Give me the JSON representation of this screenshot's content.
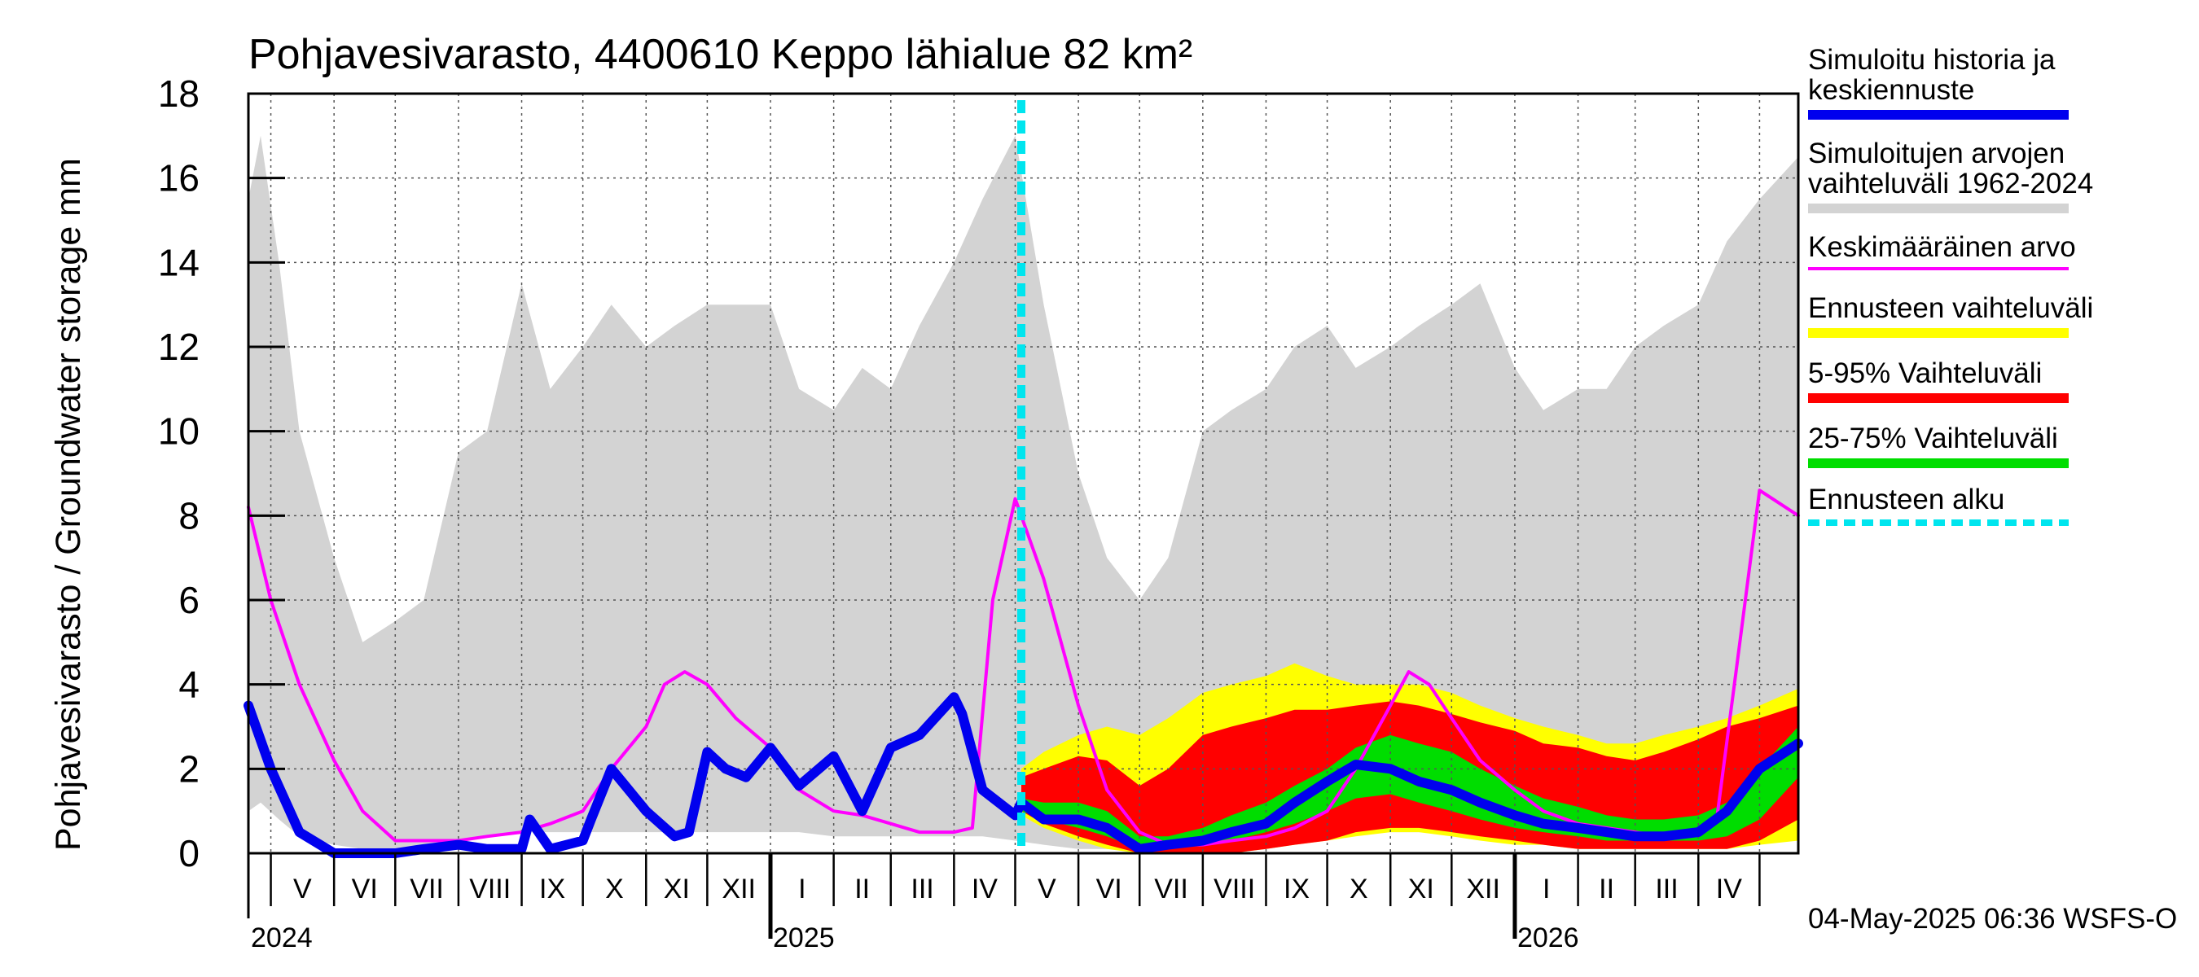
{
  "chart_data": {
    "type": "area",
    "title": "Pohjavesivarasto, 4400610 Keppo lähialue 82 km²",
    "ylabel": "Pohjavesivarasto / Groundwater storage   mm",
    "ylim": [
      0,
      18
    ],
    "yticks": [
      0,
      2,
      4,
      6,
      8,
      10,
      12,
      14,
      16,
      18
    ],
    "xlim": [
      "2024-04-20",
      "2026-05-20"
    ],
    "grid": true,
    "month_labels": [
      "V",
      "VI",
      "VII",
      "VIII",
      "IX",
      "X",
      "XI",
      "XII",
      "I",
      "II",
      "III",
      "IV",
      "V",
      "VI",
      "VII",
      "VIII",
      "IX",
      "X",
      "XI",
      "XII",
      "I",
      "II",
      "III",
      "IV"
    ],
    "month_starts": [
      "2024-05-01",
      "2024-06-01",
      "2024-07-01",
      "2024-08-01",
      "2024-09-01",
      "2024-10-01",
      "2024-11-01",
      "2024-12-01",
      "2025-01-01",
      "2025-02-01",
      "2025-03-01",
      "2025-04-01",
      "2025-05-01",
      "2025-06-01",
      "2025-07-01",
      "2025-08-01",
      "2025-09-01",
      "2025-10-01",
      "2025-11-01",
      "2025-12-01",
      "2026-01-01",
      "2026-02-01",
      "2026-03-01",
      "2026-04-01",
      "2026-05-01"
    ],
    "year_labels": [
      {
        "label": "2024",
        "date": "2024-04-20"
      },
      {
        "label": "2025",
        "date": "2025-01-01"
      },
      {
        "label": "2026",
        "date": "2026-01-01"
      }
    ],
    "forecast_start": "2025-05-04",
    "footer": "04-May-2025 06:36 WSFS-O",
    "series": [
      {
        "name": "Simuloitujen arvojen vaihteluväli 1962-2024",
        "role": "band",
        "color": "#d3d3d3",
        "x": [
          "2024-04-20",
          "2024-04-26",
          "2024-05-05",
          "2024-05-15",
          "2024-06-01",
          "2024-06-15",
          "2024-07-01",
          "2024-07-15",
          "2024-08-01",
          "2024-08-15",
          "2024-09-01",
          "2024-09-15",
          "2024-10-01",
          "2024-10-15",
          "2024-11-01",
          "2024-11-15",
          "2024-12-01",
          "2024-12-15",
          "2025-01-01",
          "2025-01-15",
          "2025-02-01",
          "2025-02-15",
          "2025-03-01",
          "2025-03-15",
          "2025-04-01",
          "2025-04-15",
          "2025-05-01",
          "2025-05-15",
          "2025-06-01",
          "2025-06-15",
          "2025-07-01",
          "2025-07-15",
          "2025-08-01",
          "2025-08-15",
          "2025-09-01",
          "2025-09-15",
          "2025-10-01",
          "2025-10-15",
          "2025-11-01",
          "2025-11-15",
          "2025-12-01",
          "2025-12-15",
          "2026-01-01",
          "2026-01-15",
          "2026-02-01",
          "2026-02-15",
          "2026-03-01",
          "2026-03-15",
          "2026-04-01",
          "2026-04-15",
          "2026-05-01",
          "2026-05-20"
        ],
        "low": [
          1.0,
          1.2,
          0.8,
          0.4,
          0.2,
          0.1,
          0.1,
          0.2,
          0.3,
          0.4,
          0.5,
          0.5,
          0.5,
          0.5,
          0.5,
          0.5,
          0.5,
          0.5,
          0.5,
          0.5,
          0.4,
          0.4,
          0.4,
          0.4,
          0.4,
          0.4,
          0.3,
          0.2,
          0.1,
          0.1,
          0.1,
          0.1,
          0.2,
          0.3,
          0.4,
          0.5,
          0.5,
          0.5,
          0.5,
          0.5,
          0.5,
          0.5,
          0.5,
          0.4,
          0.4,
          0.4,
          0.4,
          0.4,
          0.4,
          0.4,
          0.5,
          1.0
        ],
        "high": [
          15.5,
          17.0,
          14.0,
          10.0,
          7.0,
          5.0,
          5.5,
          6.0,
          9.5,
          10.0,
          13.5,
          11.0,
          12.0,
          13.0,
          12.0,
          12.5,
          13.0,
          13.0,
          13.0,
          11.0,
          10.5,
          11.5,
          11.0,
          12.5,
          14.0,
          15.5,
          17.0,
          13.0,
          9.0,
          7.0,
          6.0,
          7.0,
          10.0,
          10.5,
          11.0,
          12.0,
          12.5,
          11.5,
          12.0,
          12.5,
          13.0,
          13.5,
          11.5,
          10.5,
          11.0,
          11.0,
          12.0,
          12.5,
          13.0,
          14.5,
          15.5,
          16.5
        ]
      },
      {
        "name": "Ennusteen vaihteluväli",
        "role": "band",
        "color": "#ffff00",
        "x": [
          "2025-05-04",
          "2025-05-15",
          "2025-06-01",
          "2025-06-15",
          "2025-07-01",
          "2025-07-15",
          "2025-08-01",
          "2025-08-15",
          "2025-09-01",
          "2025-09-15",
          "2025-10-01",
          "2025-10-15",
          "2025-11-01",
          "2025-11-15",
          "2025-12-01",
          "2025-12-15",
          "2026-01-01",
          "2026-01-15",
          "2026-02-01",
          "2026-02-15",
          "2026-03-01",
          "2026-03-15",
          "2026-04-01",
          "2026-04-15",
          "2026-05-01",
          "2026-05-20"
        ],
        "low": [
          0.9,
          0.6,
          0.3,
          0.1,
          0.0,
          0.0,
          0.0,
          0.0,
          0.1,
          0.2,
          0.3,
          0.4,
          0.5,
          0.5,
          0.4,
          0.3,
          0.2,
          0.2,
          0.1,
          0.1,
          0.1,
          0.1,
          0.1,
          0.1,
          0.2,
          0.3
        ],
        "high": [
          2.0,
          2.4,
          2.8,
          3.0,
          2.8,
          3.2,
          3.8,
          4.0,
          4.2,
          4.5,
          4.2,
          4.0,
          4.0,
          4.0,
          3.8,
          3.5,
          3.2,
          3.0,
          2.8,
          2.6,
          2.6,
          2.8,
          3.0,
          3.2,
          3.5,
          3.9
        ]
      },
      {
        "name": "5-95% Vaihteluväli",
        "role": "band",
        "color": "#ff0000",
        "x": [
          "2025-05-04",
          "2025-05-15",
          "2025-06-01",
          "2025-06-15",
          "2025-07-01",
          "2025-07-15",
          "2025-08-01",
          "2025-08-15",
          "2025-09-01",
          "2025-09-15",
          "2025-10-01",
          "2025-10-15",
          "2025-11-01",
          "2025-11-15",
          "2025-12-01",
          "2025-12-15",
          "2026-01-01",
          "2026-01-15",
          "2026-02-01",
          "2026-02-15",
          "2026-03-01",
          "2026-03-15",
          "2026-04-01",
          "2026-04-15",
          "2026-05-01",
          "2026-05-20"
        ],
        "low": [
          1.0,
          0.7,
          0.4,
          0.2,
          0.0,
          0.0,
          0.0,
          0.0,
          0.1,
          0.2,
          0.3,
          0.5,
          0.6,
          0.6,
          0.5,
          0.4,
          0.3,
          0.2,
          0.1,
          0.1,
          0.1,
          0.1,
          0.1,
          0.1,
          0.3,
          0.8
        ],
        "high": [
          1.8,
          2.0,
          2.3,
          2.2,
          1.6,
          2.0,
          2.8,
          3.0,
          3.2,
          3.4,
          3.4,
          3.5,
          3.6,
          3.5,
          3.3,
          3.1,
          2.9,
          2.6,
          2.5,
          2.3,
          2.2,
          2.4,
          2.7,
          3.0,
          3.2,
          3.5
        ]
      },
      {
        "name": "25-75% Vaihteluväli",
        "role": "band",
        "color": "#00dd00",
        "x": [
          "2025-05-04",
          "2025-05-15",
          "2025-06-01",
          "2025-06-15",
          "2025-07-01",
          "2025-07-15",
          "2025-08-01",
          "2025-08-15",
          "2025-09-01",
          "2025-09-15",
          "2025-10-01",
          "2025-10-15",
          "2025-11-01",
          "2025-11-15",
          "2025-12-01",
          "2025-12-15",
          "2026-01-01",
          "2026-01-15",
          "2026-02-01",
          "2026-02-15",
          "2026-03-01",
          "2026-03-15",
          "2026-04-01",
          "2026-04-15",
          "2026-05-01",
          "2026-05-20"
        ],
        "low": [
          1.0,
          0.8,
          0.6,
          0.4,
          0.1,
          0.1,
          0.2,
          0.3,
          0.5,
          0.7,
          1.0,
          1.3,
          1.4,
          1.2,
          1.0,
          0.8,
          0.6,
          0.5,
          0.4,
          0.3,
          0.3,
          0.3,
          0.3,
          0.4,
          0.8,
          1.8
        ],
        "high": [
          1.3,
          1.2,
          1.2,
          1.0,
          0.4,
          0.4,
          0.6,
          0.9,
          1.2,
          1.6,
          2.0,
          2.5,
          2.8,
          2.6,
          2.4,
          2.0,
          1.6,
          1.3,
          1.1,
          0.9,
          0.8,
          0.8,
          0.9,
          1.2,
          2.0,
          3.0
        ]
      },
      {
        "name": "Keskimääräinen arvo",
        "role": "line",
        "color": "#ff00ff",
        "x": [
          "2024-04-20",
          "2024-05-01",
          "2024-05-15",
          "2024-06-01",
          "2024-06-15",
          "2024-07-01",
          "2024-07-15",
          "2024-08-01",
          "2024-08-15",
          "2024-09-01",
          "2024-09-15",
          "2024-10-01",
          "2024-10-15",
          "2024-11-01",
          "2024-11-10",
          "2024-11-20",
          "2024-12-01",
          "2024-12-15",
          "2025-01-01",
          "2025-01-15",
          "2025-02-01",
          "2025-02-15",
          "2025-03-01",
          "2025-03-15",
          "2025-04-01",
          "2025-04-10",
          "2025-04-20",
          "2025-05-01",
          "2025-05-15",
          "2025-06-01",
          "2025-06-15",
          "2025-07-01",
          "2025-07-15",
          "2025-08-01",
          "2025-08-15",
          "2025-09-01",
          "2025-09-15",
          "2025-10-01",
          "2025-10-15",
          "2025-11-01",
          "2025-11-10",
          "2025-11-20",
          "2025-12-01",
          "2025-12-15",
          "2026-01-01",
          "2026-01-15",
          "2026-02-01",
          "2026-02-15",
          "2026-03-01",
          "2026-03-15",
          "2026-04-01",
          "2026-04-10",
          "2026-04-20",
          "2026-05-01",
          "2026-05-20"
        ],
        "y": [
          8.2,
          6.0,
          4.0,
          2.2,
          1.0,
          0.3,
          0.3,
          0.3,
          0.4,
          0.5,
          0.7,
          1.0,
          2.0,
          3.0,
          4.0,
          4.3,
          4.0,
          3.2,
          2.5,
          1.5,
          1.0,
          0.9,
          0.7,
          0.5,
          0.5,
          0.6,
          6.0,
          8.4,
          6.5,
          3.5,
          1.5,
          0.5,
          0.2,
          0.2,
          0.3,
          0.4,
          0.6,
          1.0,
          2.0,
          3.5,
          4.3,
          4.0,
          3.2,
          2.2,
          1.5,
          1.0,
          0.7,
          0.6,
          0.5,
          0.4,
          0.5,
          0.8,
          4.5,
          8.6,
          8.0
        ]
      },
      {
        "name": "Simuloitu historia ja keskiennuste",
        "role": "line",
        "color": "#0000ee",
        "x": [
          "2024-04-20",
          "2024-05-01",
          "2024-05-15",
          "2024-06-01",
          "2024-06-15",
          "2024-07-01",
          "2024-07-15",
          "2024-08-01",
          "2024-08-15",
          "2024-09-01",
          "2024-09-05",
          "2024-09-15",
          "2024-10-01",
          "2024-10-05",
          "2024-10-15",
          "2024-11-01",
          "2024-11-15",
          "2024-11-22",
          "2024-12-01",
          "2024-12-10",
          "2024-12-20",
          "2025-01-01",
          "2025-01-15",
          "2025-02-01",
          "2025-02-15",
          "2025-03-01",
          "2025-03-15",
          "2025-04-01",
          "2025-04-05",
          "2025-04-15",
          "2025-05-01",
          "2025-05-04",
          "2025-05-15",
          "2025-06-01",
          "2025-06-15",
          "2025-07-01",
          "2025-07-15",
          "2025-08-01",
          "2025-08-15",
          "2025-09-01",
          "2025-09-15",
          "2025-10-01",
          "2025-10-15",
          "2025-11-01",
          "2025-11-15",
          "2025-12-01",
          "2025-12-15",
          "2026-01-01",
          "2026-01-15",
          "2026-02-01",
          "2026-02-15",
          "2026-03-01",
          "2026-03-15",
          "2026-04-01",
          "2026-04-15",
          "2026-05-01",
          "2026-05-20"
        ],
        "y": [
          3.5,
          2.0,
          0.5,
          0.0,
          0.0,
          0.0,
          0.1,
          0.2,
          0.1,
          0.1,
          0.8,
          0.1,
          0.3,
          0.8,
          2.0,
          1.0,
          0.4,
          0.5,
          2.4,
          2.0,
          1.8,
          2.5,
          1.6,
          2.3,
          1.0,
          2.5,
          2.8,
          3.7,
          3.3,
          1.5,
          0.9,
          1.2,
          0.8,
          0.8,
          0.6,
          0.1,
          0.2,
          0.3,
          0.5,
          0.7,
          1.2,
          1.7,
          2.1,
          2.0,
          1.7,
          1.5,
          1.2,
          0.9,
          0.7,
          0.6,
          0.5,
          0.4,
          0.4,
          0.5,
          1.0,
          2.0,
          2.6
        ]
      }
    ]
  },
  "legend": [
    {
      "label": "Simuloitu historia ja\nkeskiennuste",
      "color": "#0000ee",
      "style": "solid-thick"
    },
    {
      "label": "Simuloitujen arvojen\nvaihteluväli 1962-2024",
      "color": "#d3d3d3",
      "style": "solid-thick"
    },
    {
      "label": "Keskimääräinen arvo",
      "color": "#ff00ff",
      "style": "solid-thin"
    },
    {
      "label": "Ennusteen vaihteluväli",
      "color": "#ffff00",
      "style": "solid-thick"
    },
    {
      "label": "5-95% Vaihteluväli",
      "color": "#ff0000",
      "style": "solid-thick"
    },
    {
      "label": "25-75% Vaihteluväli",
      "color": "#00dd00",
      "style": "solid-thick"
    },
    {
      "label": "Ennusteen alku",
      "color": "#00e5ee",
      "style": "dashed"
    }
  ]
}
